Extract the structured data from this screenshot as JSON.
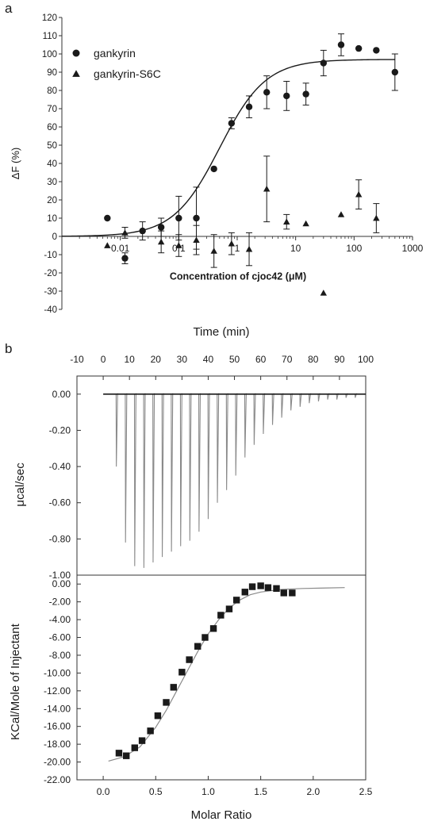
{
  "panel_labels": {
    "a": "a",
    "b": "b"
  },
  "colors": {
    "ink": "#1a1a1a",
    "raw_trace": "#8a8a8a",
    "fit_curve": "#8a8a8a",
    "frame": "#333333"
  },
  "chart_data": [
    {
      "id": "panel-a",
      "type": "scatter",
      "title": "",
      "xlabel": "Concentration of cjoc42 (μM)",
      "ylabel": "ΔF (%)",
      "xscale": "log",
      "xlim": [
        0.001,
        1000
      ],
      "ylim": [
        -40,
        120
      ],
      "xticks": [
        0.01,
        0.1,
        1,
        10,
        100,
        1000
      ],
      "xtick_labels": [
        "0.01",
        "0.1",
        "1",
        "10",
        "100",
        "1000"
      ],
      "yticks": [
        -40,
        -30,
        -20,
        -10,
        0,
        10,
        20,
        30,
        40,
        50,
        60,
        70,
        80,
        90,
        100,
        110,
        120
      ],
      "ytick_labels": [
        "-40",
        "-30",
        "-20",
        "-10",
        "0",
        "10",
        "20",
        "30",
        "40",
        "50",
        "60",
        "70",
        "80",
        "90",
        "100",
        "110",
        "120"
      ],
      "legend_position": "top-left",
      "grid": false,
      "series": [
        {
          "name": "gankyrin",
          "marker": "circle",
          "x": [
            0.006,
            0.012,
            0.024,
            0.05,
            0.1,
            0.2,
            0.4,
            0.8,
            1.6,
            3.2,
            7,
            15,
            30,
            60,
            120,
            240,
            500
          ],
          "y": [
            10,
            -12,
            3,
            5,
            10,
            10,
            37,
            62,
            71,
            79,
            77,
            78,
            95,
            105,
            103,
            102,
            90
          ],
          "err": [
            0,
            3,
            5,
            5,
            12,
            17,
            0,
            3,
            6,
            9,
            8,
            6,
            7,
            6,
            0,
            0,
            10
          ]
        },
        {
          "name": "gankyrin-S6C",
          "marker": "triangle",
          "x": [
            0.006,
            0.012,
            0.05,
            0.1,
            0.2,
            0.4,
            0.8,
            1.6,
            3.2,
            7,
            15,
            30,
            60,
            120,
            240
          ],
          "y": [
            -5,
            2,
            -3,
            -5,
            -2,
            -8,
            -4,
            -7,
            26,
            8,
            7,
            -31,
            12,
            23,
            10
          ],
          "err": [
            0,
            3,
            6,
            6,
            8,
            9,
            6,
            9,
            18,
            4,
            0,
            0,
            0,
            8,
            8
          ]
        }
      ],
      "fit": {
        "model": "hill",
        "bottom": 0,
        "top": 97,
        "ec50": 0.5,
        "hill_slope": 1.1,
        "x_range": [
          0.001,
          500
        ]
      }
    },
    {
      "id": "panel-b-top",
      "type": "line",
      "title": "",
      "xlabel": "Time (min)",
      "ylabel": "μcal/sec",
      "xlim": [
        -10,
        100
      ],
      "ylim": [
        -1.0,
        0.1
      ],
      "xticks": [
        -10,
        0,
        10,
        20,
        30,
        40,
        50,
        60,
        70,
        80,
        90,
        100
      ],
      "xtick_labels": [
        "-10",
        "0",
        "10",
        "20",
        "30",
        "40",
        "50",
        "60",
        "70",
        "80",
        "90",
        "100"
      ],
      "yticks": [
        0.0,
        -0.2,
        -0.4,
        -0.6,
        -0.8,
        -1.0
      ],
      "ytick_labels": [
        "0.00",
        "-0.20",
        "-0.40",
        "-0.60",
        "-0.80",
        "-1.00"
      ],
      "grid": false,
      "baseline": 0.0,
      "baseline_range": [
        0,
        100
      ],
      "injections": {
        "time": [
          5,
          8.5,
          12,
          15.5,
          19,
          22.5,
          26,
          29.5,
          33,
          36.5,
          40,
          43.5,
          47,
          50.5,
          54,
          57.5,
          61,
          64.5,
          68,
          71.5,
          75,
          78.5,
          82,
          85.5,
          89,
          92.5,
          96
        ],
        "min": [
          -0.4,
          -0.82,
          -0.95,
          -0.96,
          -0.93,
          -0.9,
          -0.87,
          -0.84,
          -0.81,
          -0.76,
          -0.69,
          -0.6,
          -0.53,
          -0.45,
          -0.35,
          -0.28,
          -0.22,
          -0.17,
          -0.13,
          -0.09,
          -0.07,
          -0.05,
          -0.04,
          -0.03,
          -0.03,
          -0.02,
          -0.02
        ]
      }
    },
    {
      "id": "panel-b-bottom",
      "type": "scatter",
      "title": "",
      "xlabel": "Molar Ratio",
      "ylabel": "KCal/Mole of Injectant",
      "xlim": [
        -0.25,
        2.5
      ],
      "ylim": [
        -22.0,
        1.0
      ],
      "xticks": [
        0.0,
        0.5,
        1.0,
        1.5,
        2.0,
        2.5
      ],
      "xtick_labels": [
        "0.0",
        "0.5",
        "1.0",
        "1.5",
        "2.0",
        "2.5"
      ],
      "yticks": [
        0,
        -2,
        -4,
        -6,
        -8,
        -10,
        -12,
        -14,
        -16,
        -18,
        -20,
        -22
      ],
      "ytick_labels": [
        "0.00",
        "-2.00",
        "-4.00",
        "-6.00",
        "-8.00",
        "-10.00",
        "-12.00",
        "-14.00",
        "-16.00",
        "-18.00",
        "-20.00",
        "-22.00"
      ],
      "grid": false,
      "points": {
        "x": [
          0.15,
          0.22,
          0.3,
          0.37,
          0.45,
          0.52,
          0.6,
          0.67,
          0.75,
          0.82,
          0.9,
          0.97,
          1.05,
          1.12,
          1.2,
          1.27,
          1.35,
          1.42,
          1.5,
          1.57,
          1.65,
          1.72,
          1.8
        ],
        "y": [
          -19.0,
          -19.3,
          -18.4,
          -17.6,
          -16.5,
          -14.8,
          -13.3,
          -11.6,
          -9.9,
          -8.5,
          -7.0,
          -6.0,
          -5.0,
          -3.5,
          -2.8,
          -1.8,
          -0.9,
          -0.3,
          -0.2,
          -0.4,
          -0.5,
          -1.0,
          -1.0
        ]
      },
      "fit": {
        "x": [
          0.05,
          0.2,
          0.35,
          0.5,
          0.6,
          0.7,
          0.8,
          0.9,
          1.0,
          1.1,
          1.2,
          1.3,
          1.4,
          1.5,
          1.7,
          1.9,
          2.1,
          2.3
        ],
        "y": [
          -19.9,
          -19.4,
          -18.3,
          -16.1,
          -14.2,
          -12.0,
          -9.8,
          -7.6,
          -5.6,
          -4.0,
          -2.7,
          -1.8,
          -1.2,
          -0.9,
          -0.6,
          -0.5,
          -0.45,
          -0.4
        ]
      }
    }
  ]
}
